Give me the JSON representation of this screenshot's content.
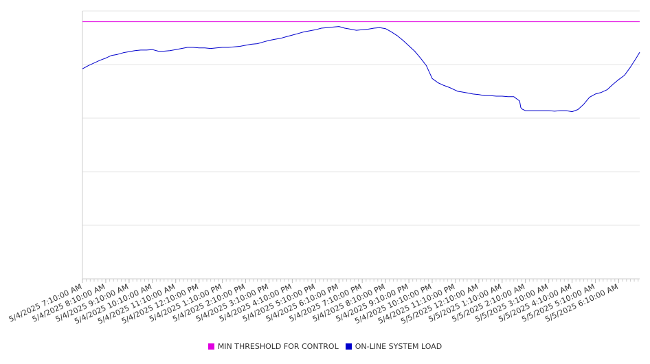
{
  "chart_data": {
    "type": "line",
    "title": "",
    "xlabel": "",
    "ylabel": "",
    "x_tick_labels": [
      "5/4/2025 7:10:00 AM",
      "5/4/2025 8:10:00 AM",
      "5/4/2025 9:10:00 AM",
      "5/4/2025 10:10:00 AM",
      "5/4/2025 11:10:00 AM",
      "5/4/2025 12:10:00 PM",
      "5/4/2025 1:10:00 PM",
      "5/4/2025 2:10:00 PM",
      "5/4/2025 3:10:00 PM",
      "5/4/2025 4:10:00 PM",
      "5/4/2025 5:10:00 PM",
      "5/4/2025 6:10:00 PM",
      "5/4/2025 7:10:00 PM",
      "5/4/2025 8:10:00 PM",
      "5/4/2025 9:10:00 PM",
      "5/4/2025 10:10:00 PM",
      "5/4/2025 11:10:00 PM",
      "5/5/2025 12:10:00 AM",
      "5/5/2025 1:10:00 AM",
      "5/5/2025 2:10:00 AM",
      "5/5/2025 3:10:00 AM",
      "5/5/2025 4:10:00 AM",
      "5/5/2025 5:10:00 AM",
      "5/5/2025 6:10:00 AM"
    ],
    "y_tick_labels": [],
    "ylim": [
      0,
      5
    ],
    "xlim": [
      0,
      23.9
    ],
    "grid": true,
    "legend_position": "bottom",
    "series": [
      {
        "name": "MIN THRESHOLD FOR CONTROL",
        "color": "#e000e0",
        "x": [
          0,
          23.9
        ],
        "y": [
          4.8,
          4.8
        ]
      },
      {
        "name": "ON-LINE SYSTEM LOAD",
        "color": "#0000cc",
        "x": [
          0,
          0.25,
          0.5,
          0.75,
          1.0,
          1.25,
          1.5,
          1.75,
          2.0,
          2.25,
          2.5,
          2.75,
          3.0,
          3.25,
          3.5,
          3.75,
          4.0,
          4.25,
          4.5,
          4.75,
          5.0,
          5.25,
          5.5,
          5.75,
          6.0,
          6.25,
          6.5,
          6.75,
          7.0,
          7.25,
          7.5,
          7.75,
          8.0,
          8.25,
          8.5,
          8.75,
          9.0,
          9.25,
          9.5,
          9.75,
          10.0,
          10.25,
          10.5,
          10.75,
          11.0,
          11.25,
          11.5,
          11.75,
          12.0,
          12.25,
          12.5,
          12.75,
          13.0,
          13.25,
          13.5,
          13.75,
          14.0,
          14.25,
          14.5,
          14.75,
          15.0,
          15.25,
          15.5,
          15.75,
          16.0,
          16.1,
          16.25,
          16.5,
          16.75,
          17.0,
          17.25,
          17.5,
          17.75,
          18.0,
          18.25,
          18.5,
          18.75,
          18.8,
          18.85,
          19.0,
          19.25,
          19.5,
          19.75,
          20.0,
          20.25,
          20.5,
          20.75,
          21.0,
          21.25,
          21.5,
          21.75,
          22.0,
          22.25,
          22.5,
          22.75,
          23.0,
          23.25,
          23.5,
          23.75,
          23.9
        ],
        "y": [
          3.92,
          3.98,
          4.03,
          4.08,
          4.12,
          4.17,
          4.19,
          4.22,
          4.24,
          4.26,
          4.27,
          4.27,
          4.28,
          4.25,
          4.25,
          4.26,
          4.28,
          4.3,
          4.32,
          4.32,
          4.31,
          4.31,
          4.3,
          4.31,
          4.32,
          4.32,
          4.33,
          4.34,
          4.36,
          4.38,
          4.39,
          4.42,
          4.45,
          4.47,
          4.49,
          4.52,
          4.55,
          4.58,
          4.61,
          4.63,
          4.65,
          4.68,
          4.69,
          4.7,
          4.71,
          4.68,
          4.66,
          4.64,
          4.65,
          4.66,
          4.68,
          4.69,
          4.67,
          4.61,
          4.54,
          4.45,
          4.35,
          4.25,
          4.12,
          3.98,
          3.74,
          3.66,
          3.61,
          3.57,
          3.52,
          3.5,
          3.49,
          3.47,
          3.45,
          3.44,
          3.42,
          3.42,
          3.41,
          3.41,
          3.4,
          3.4,
          3.32,
          3.2,
          3.17,
          3.14,
          3.14,
          3.14,
          3.14,
          3.14,
          3.13,
          3.14,
          3.14,
          3.12,
          3.16,
          3.26,
          3.39,
          3.45,
          3.48,
          3.53,
          3.63,
          3.72,
          3.8,
          3.95,
          4.12,
          4.23
        ]
      }
    ]
  }
}
